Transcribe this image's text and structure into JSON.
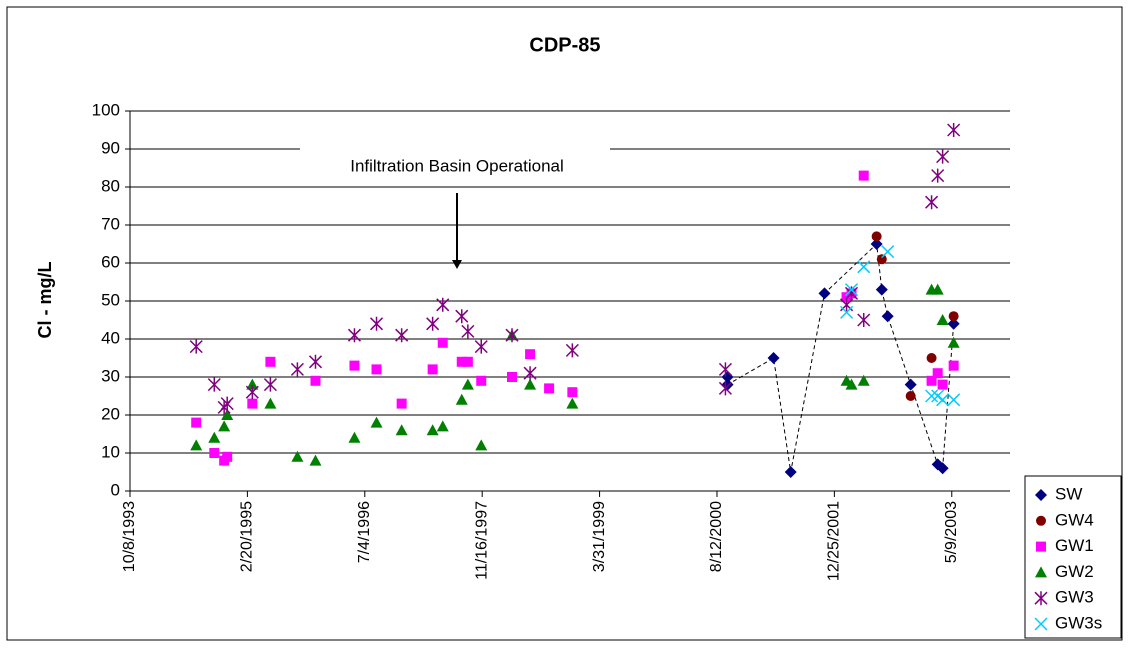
{
  "chart_data": {
    "type": "scatter",
    "title": "CDP-85",
    "ylabel": "Cl - mg/L",
    "annotation": "Infiltration Basin Operational",
    "xlim": [
      "10/8/1993",
      "1/12/2004"
    ],
    "xticks": [
      "10/8/1993",
      "2/20/1995",
      "7/4/1996",
      "11/16/1997",
      "3/31/1999",
      "8/12/2000",
      "12/25/2001",
      "5/9/2003"
    ],
    "ylim": [
      0,
      100
    ],
    "yticks": [
      0,
      10,
      20,
      30,
      40,
      50,
      60,
      70,
      80,
      90,
      100
    ],
    "grid": true,
    "legend": "right",
    "series": [
      {
        "name": "SW",
        "color": "#000080",
        "marker": "diamond",
        "line": "dashed",
        "x": [
          "9/26/2000",
          "9/26/2000",
          "4/10/2001",
          "6/22/2001",
          "11/13/2001",
          "6/23/2002",
          "7/15/2002",
          "8/9/2002",
          "11/15/2002",
          "3/10/2003",
          "3/31/2003",
          "5/17/2003"
        ],
        "values": [
          30,
          28,
          35,
          5,
          52,
          65,
          53,
          46,
          28,
          7,
          6,
          44
        ]
      },
      {
        "name": "GW4",
        "color": "#800000",
        "marker": "circle",
        "x": [
          "6/23/2002",
          "7/15/2002",
          "11/15/2002",
          "2/12/2003",
          "5/17/2003"
        ],
        "values": [
          67,
          61,
          25,
          35,
          46
        ]
      },
      {
        "name": "GW1",
        "color": "#ff00ff",
        "marker": "square",
        "x": [
          "7/17/1994",
          "10/2/1994",
          "11/13/1994",
          "11/26/1994",
          "3/13/1995",
          "5/29/1995",
          "12/7/1995",
          "5/21/1996",
          "8/23/1996",
          "12/8/1996",
          "4/19/1997",
          "6/1/1997",
          "8/21/1997",
          "9/16/1997",
          "11/12/1997",
          "3/23/1998",
          "6/8/1998",
          "8/28/1998",
          "12/5/1998",
          "2/15/2002",
          "3/8/2002",
          "4/29/2002",
          "2/12/2003",
          "3/10/2003",
          "3/31/2003",
          "5/17/2003"
        ],
        "values": [
          18,
          10,
          8,
          9,
          23,
          34,
          29,
          33,
          32,
          23,
          32,
          39,
          34,
          34,
          29,
          30,
          36,
          27,
          26,
          51,
          52,
          83,
          29,
          31,
          28,
          33
        ]
      },
      {
        "name": "GW2",
        "color": "#008000",
        "marker": "triangle",
        "x": [
          "7/17/1994",
          "10/2/1994",
          "11/13/1994",
          "11/26/1994",
          "3/13/1995",
          "5/29/1995",
          "9/21/1995",
          "12/7/1995",
          "5/21/1996",
          "8/23/1996",
          "12/8/1996",
          "4/19/1997",
          "6/1/1997",
          "8/21/1997",
          "9/16/1997",
          "11/12/1997",
          "3/23/1998",
          "6/8/1998",
          "12/5/1998",
          "2/15/2002",
          "3/8/2002",
          "4/29/2002",
          "2/12/2003",
          "3/10/2003",
          "3/31/2003",
          "5/17/2003"
        ],
        "values": [
          12,
          14,
          17,
          20,
          28,
          23,
          9,
          8,
          14,
          18,
          16,
          16,
          17,
          24,
          28,
          12,
          41,
          28,
          23,
          29,
          28,
          29,
          53,
          53,
          45,
          39
        ]
      },
      {
        "name": "GW3",
        "color": "#800080",
        "marker": "asterisk",
        "x": [
          "7/17/1994",
          "10/2/1994",
          "11/13/1994",
          "11/26/1994",
          "3/13/1995",
          "5/29/1995",
          "9/21/1995",
          "12/7/1995",
          "5/21/1996",
          "8/23/1996",
          "12/8/1996",
          "4/19/1997",
          "6/1/1997",
          "8/21/1997",
          "9/16/1997",
          "11/12/1997",
          "3/23/1998",
          "6/8/1998",
          "12/5/1998",
          "9/17/2000",
          "9/17/2000",
          "2/15/2002",
          "3/8/2002",
          "4/29/2002",
          "2/12/2003",
          "3/10/2003",
          "3/31/2003",
          "5/17/2003"
        ],
        "values": [
          38,
          28,
          22,
          23,
          26,
          28,
          32,
          34,
          41,
          44,
          41,
          44,
          49,
          46,
          42,
          38,
          41,
          31,
          37,
          32,
          27,
          49,
          52,
          45,
          76,
          83,
          88,
          95
        ]
      },
      {
        "name": "GW3s",
        "color": "#00ccff",
        "marker": "cross",
        "x": [
          "2/15/2002",
          "3/8/2002",
          "4/29/2002",
          "8/9/2002",
          "2/12/2003",
          "3/10/2003",
          "3/31/2003",
          "5/17/2003"
        ],
        "values": [
          47,
          53,
          59,
          63,
          25,
          25,
          24,
          24
        ]
      }
    ]
  }
}
